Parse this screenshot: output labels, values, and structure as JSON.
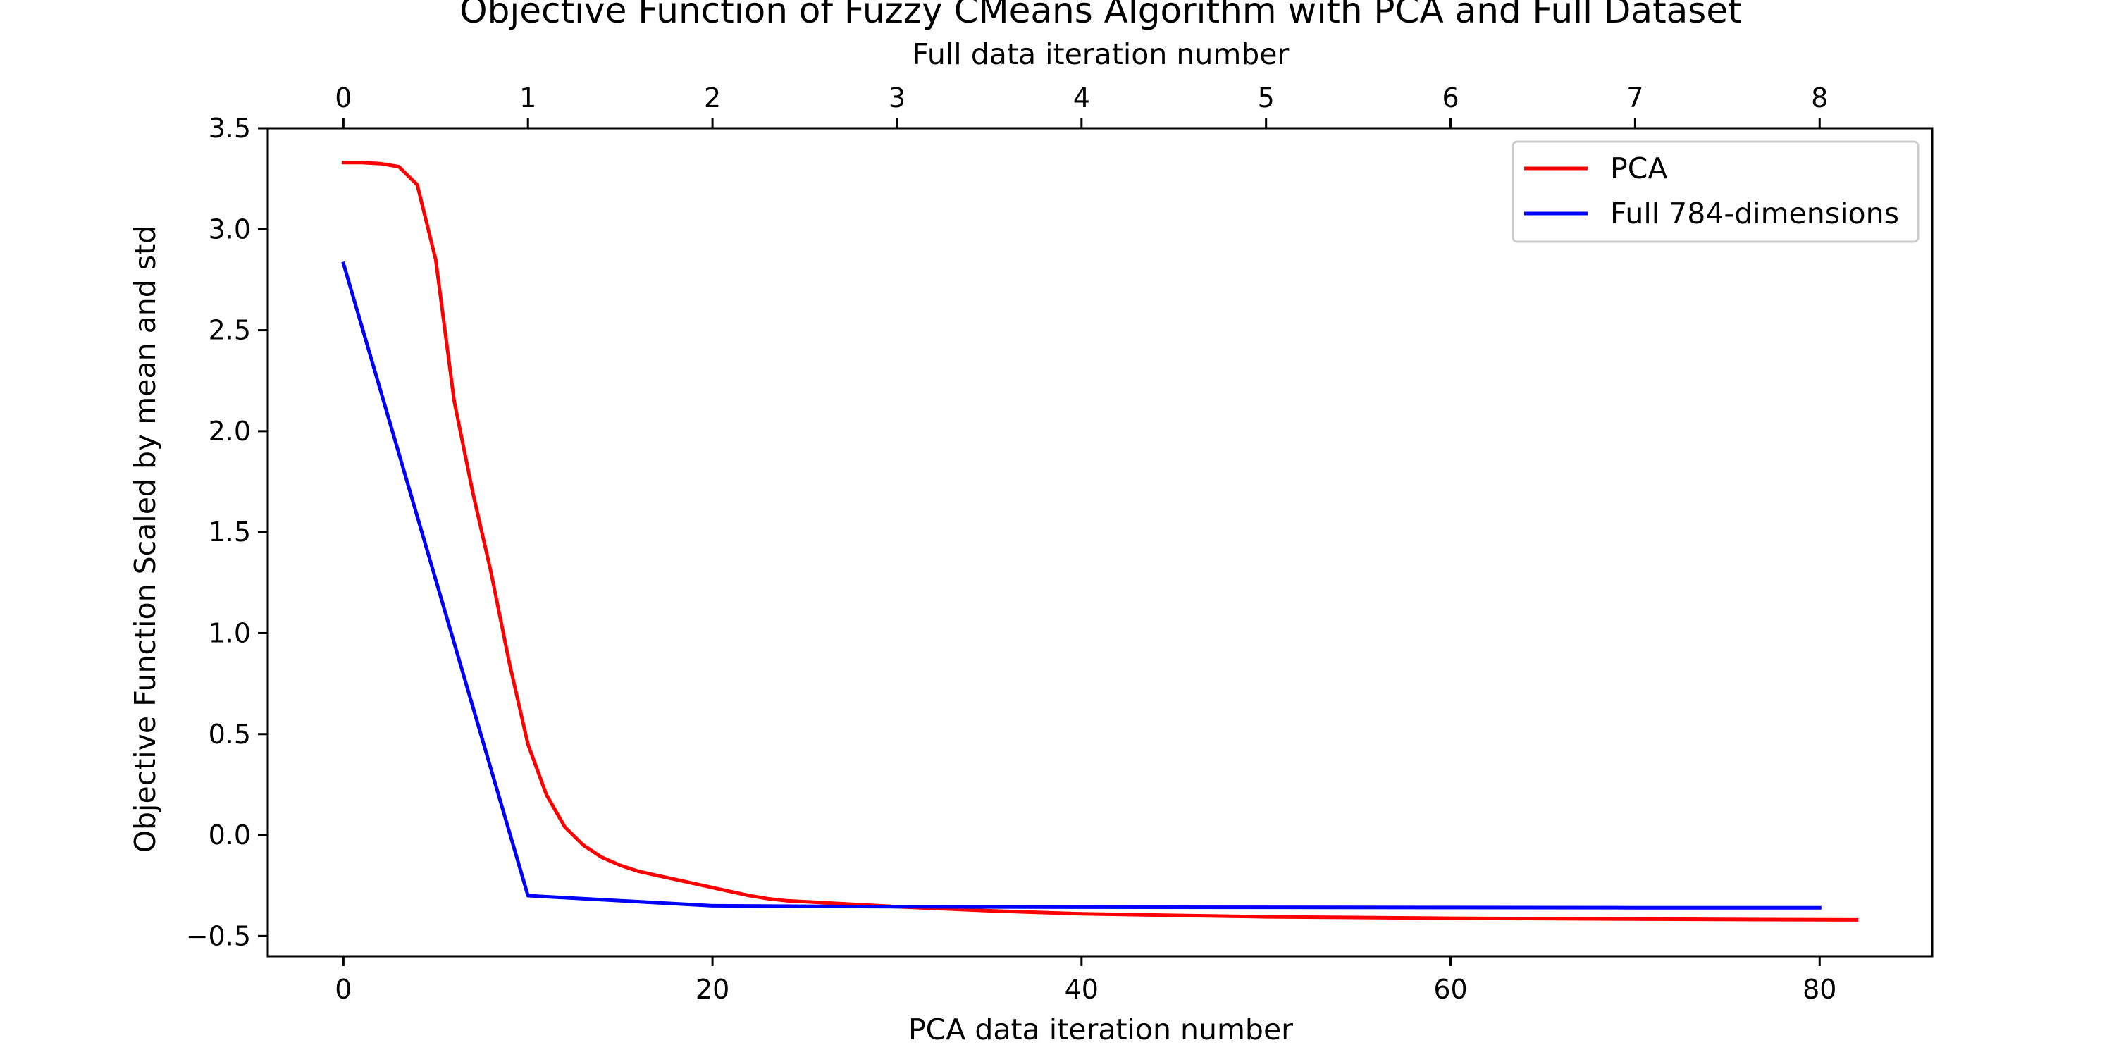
{
  "chart_data": {
    "type": "line",
    "title": "Objective Function of Fuzzy CMeans Algorithm with PCA and Full Dataset",
    "xlabel": "PCA data iteration number",
    "x2label": "Full data iteration number",
    "ylabel": "Objective Function Scaled by mean and std",
    "xlim": [
      -4.1,
      86.1
    ],
    "x2lim": [
      -0.41,
      8.61
    ],
    "ylim": [
      -0.6,
      3.5
    ],
    "xticks": [
      0,
      20,
      40,
      60,
      80
    ],
    "xtick_labels": [
      "0",
      "20",
      "40",
      "60",
      "80"
    ],
    "x2ticks": [
      0,
      1,
      2,
      3,
      4,
      5,
      6,
      7,
      8
    ],
    "x2tick_labels": [
      "0",
      "1",
      "2",
      "3",
      "4",
      "5",
      "6",
      "7",
      "8"
    ],
    "yticks": [
      -0.5,
      0.0,
      0.5,
      1.0,
      1.5,
      2.0,
      2.5,
      3.0,
      3.5
    ],
    "ytick_labels": [
      "−0.5",
      "0.0",
      "0.5",
      "1.0",
      "1.5",
      "2.0",
      "2.5",
      "3.0",
      "3.5"
    ],
    "grid": false,
    "legend_position": "top-right",
    "series": [
      {
        "name": "PCA",
        "color": "#ff0000",
        "axis": "bottom",
        "x": [
          0,
          1,
          2,
          3,
          4,
          5,
          6,
          7,
          8,
          9,
          10,
          11,
          12,
          13,
          14,
          15,
          16,
          17,
          18,
          19,
          20,
          21,
          22,
          23,
          24,
          25,
          30,
          35,
          40,
          50,
          60,
          70,
          82
        ],
        "y": [
          3.33,
          3.33,
          3.325,
          3.31,
          3.22,
          2.85,
          2.15,
          1.7,
          1.3,
          0.85,
          0.45,
          0.2,
          0.04,
          -0.05,
          -0.11,
          -0.15,
          -0.18,
          -0.2,
          -0.22,
          -0.24,
          -0.26,
          -0.28,
          -0.3,
          -0.315,
          -0.325,
          -0.33,
          -0.355,
          -0.375,
          -0.39,
          -0.405,
          -0.412,
          -0.416,
          -0.42
        ]
      },
      {
        "name": "Full 784-dimensions",
        "color": "#0000ff",
        "axis": "top",
        "x": [
          0,
          1,
          2,
          3,
          4,
          5,
          6,
          7,
          8
        ],
        "y": [
          2.83,
          -0.3,
          -0.35,
          -0.355,
          -0.357,
          -0.358,
          -0.359,
          -0.36,
          -0.36
        ]
      }
    ]
  }
}
